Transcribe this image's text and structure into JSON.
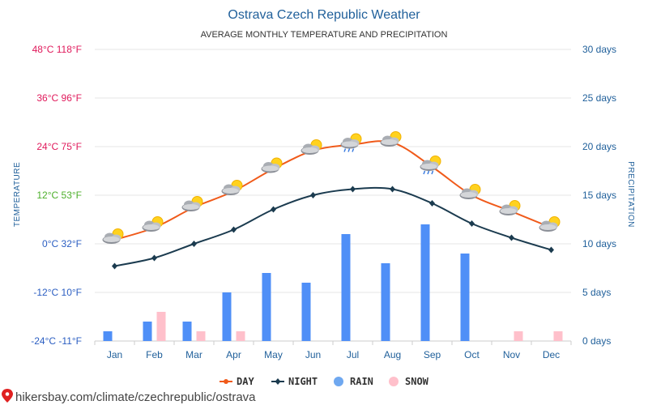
{
  "header": {
    "title": "Ostrava Czech Republic Weather",
    "subtitle": "AVERAGE MONTHLY TEMPERATURE AND PRECIPITATION"
  },
  "footer": {
    "url": "hikersbay.com/climate/czechrepublic/ostrava"
  },
  "colors": {
    "day": "#f05a1a",
    "night": "#1b3b4f",
    "rain": "#4f8ff7",
    "snow": "#ffc0cb",
    "legend_rain": "#6fa8f0",
    "temp_hot": "#e0195b",
    "temp_warm": "#e0195b",
    "temp_mild": "#4caf2a",
    "temp_cold": "#2b5ec2",
    "grid": "#e6e6e6"
  },
  "chart_data": {
    "type": "line+bar",
    "title": "Ostrava Czech Republic Weather",
    "subtitle": "AVERAGE MONTHLY TEMPERATURE AND PRECIPITATION",
    "categories": [
      "Jan",
      "Feb",
      "Mar",
      "Apr",
      "May",
      "Jun",
      "Jul",
      "Aug",
      "Sep",
      "Oct",
      "Nov",
      "Dec"
    ],
    "left_axis": {
      "title": "TEMPERATURE",
      "unit": "°C",
      "ylim": [
        -24,
        48
      ],
      "ticks": [
        {
          "value": 48,
          "label": "48°C 118°F",
          "color_key": "temp_hot"
        },
        {
          "value": 36,
          "label": "36°C 96°F",
          "color_key": "temp_warm"
        },
        {
          "value": 24,
          "label": "24°C 75°F",
          "color_key": "temp_warm"
        },
        {
          "value": 12,
          "label": "12°C 53°F",
          "color_key": "temp_mild"
        },
        {
          "value": 0,
          "label": "0°C 32°F",
          "color_key": "temp_cold"
        },
        {
          "value": -12,
          "label": "-12°C 10°F",
          "color_key": "temp_cold"
        },
        {
          "value": -24,
          "label": "-24°C -11°F",
          "color_key": "temp_cold"
        }
      ]
    },
    "right_axis": {
      "title": "PRECIPITATION",
      "unit": "days",
      "ylim": [
        0,
        30
      ],
      "ticks": [
        {
          "value": 30,
          "label": "30 days"
        },
        {
          "value": 25,
          "label": "25 days"
        },
        {
          "value": 20,
          "label": "20 days"
        },
        {
          "value": 15,
          "label": "15 days"
        },
        {
          "value": 10,
          "label": "10 days"
        },
        {
          "value": 5,
          "label": "5 days"
        },
        {
          "value": 0,
          "label": "0 days"
        }
      ]
    },
    "series": [
      {
        "name": "DAY",
        "kind": "line",
        "axis": "left",
        "values": [
          1,
          4,
          9,
          13,
          18.5,
          23,
          24.5,
          25,
          19,
          12,
          8,
          4
        ]
      },
      {
        "name": "NIGHT",
        "kind": "line",
        "axis": "left",
        "values": [
          -5.5,
          -3.5,
          0,
          3.5,
          8.5,
          12,
          13.5,
          13.5,
          10,
          5,
          1.5,
          -1.5
        ]
      },
      {
        "name": "RAIN",
        "kind": "bar",
        "axis": "right",
        "values": [
          1,
          2,
          2,
          5,
          7,
          6,
          11,
          8,
          12,
          9,
          0,
          0
        ]
      },
      {
        "name": "SNOW",
        "kind": "bar",
        "axis": "right",
        "values": [
          0,
          3,
          1,
          1,
          0,
          0,
          0,
          0,
          0,
          0,
          1,
          1
        ]
      }
    ],
    "weather_icons": [
      "sun-cloud",
      "sun-cloud",
      "sun-cloud",
      "sun-cloud",
      "sun-cloud",
      "sun-cloud",
      "sun-cloud-rain",
      "sun-cloud",
      "sun-cloud-rain",
      "sun-cloud",
      "sun-cloud",
      "sun-cloud"
    ],
    "legend": [
      {
        "label": "DAY",
        "marker": "line-dot",
        "color_key": "day"
      },
      {
        "label": "NIGHT",
        "marker": "line-diamond",
        "color_key": "night"
      },
      {
        "label": "RAIN",
        "marker": "circle",
        "color_key": "legend_rain"
      },
      {
        "label": "SNOW",
        "marker": "circle",
        "color_key": "snow"
      }
    ],
    "legend_position": "bottom-center",
    "grid": true
  }
}
